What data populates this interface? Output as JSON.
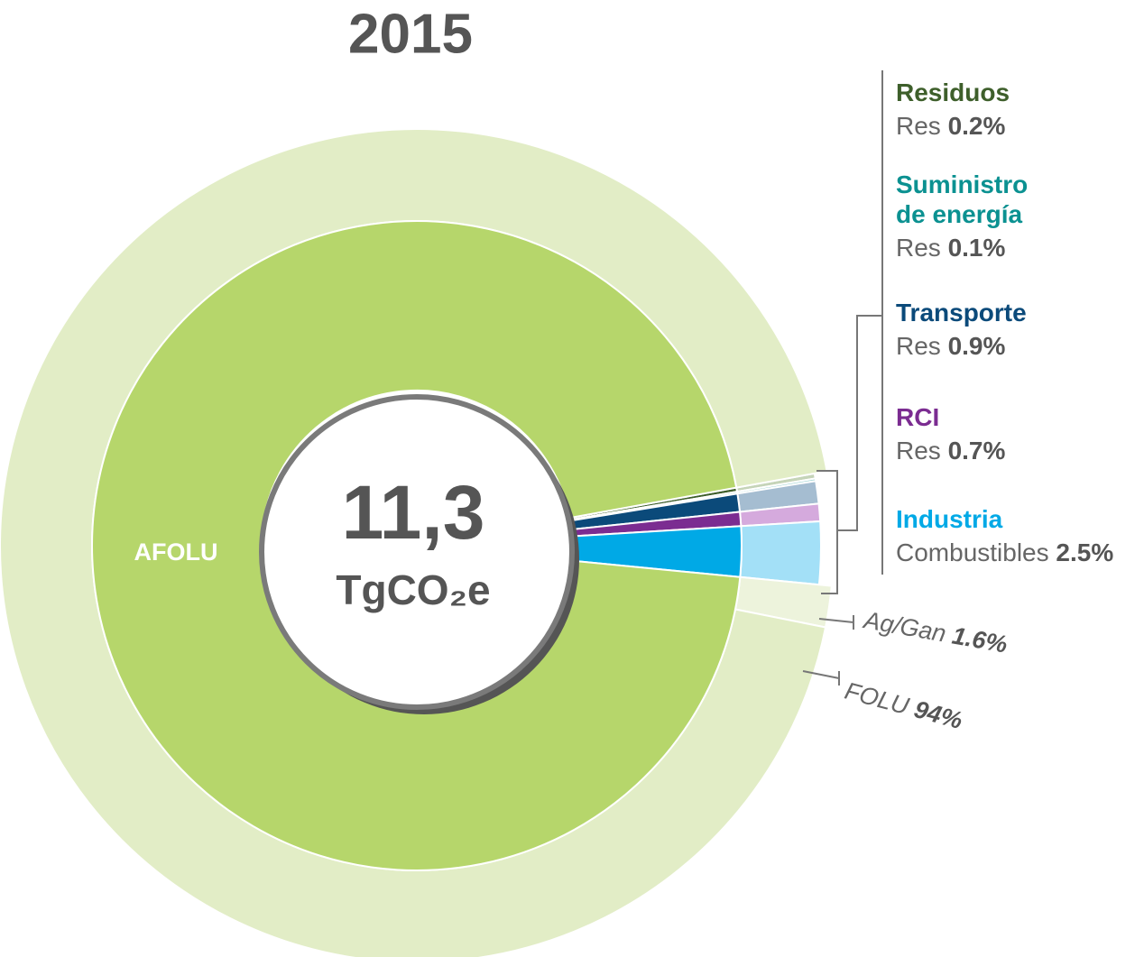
{
  "chart_data": {
    "type": "sunburst",
    "title": "2015",
    "center_label": "11,3",
    "unit": "TgCO₂e",
    "sectors": [
      {
        "name": "Residuos",
        "color": "#3e5f2b",
        "children": [
          {
            "name": "Res",
            "value": 0.2,
            "value_label": "0.2%",
            "color": "#c5d4b8"
          }
        ]
      },
      {
        "name": "Suministro de energía",
        "color": "#0b9191",
        "children": [
          {
            "name": "Res",
            "value": 0.1,
            "value_label": "0.1%",
            "color": "#9ed3d3"
          }
        ]
      },
      {
        "name": "Transporte",
        "color": "#0b4a7a",
        "children": [
          {
            "name": "Res",
            "value": 0.9,
            "value_label": "0.9%",
            "color": "#a5bdd1"
          }
        ]
      },
      {
        "name": "RCI",
        "color": "#7b2c91",
        "children": [
          {
            "name": "Res",
            "value": 0.7,
            "value_label": "0.7%",
            "color": "#d5aadd"
          }
        ]
      },
      {
        "name": "Industria",
        "color": "#00a9e6",
        "children": [
          {
            "name": "Combustibles",
            "value": 2.5,
            "value_label": "2.5%",
            "color": "#a3e0f7"
          }
        ]
      },
      {
        "name": "AFOLU",
        "color": "#b6d66b",
        "children": [
          {
            "name": "Ag/Gan",
            "value": 1.6,
            "value_label": "1.6%",
            "color": "#edf3dc"
          },
          {
            "name": "FOLU",
            "value": 94,
            "value_label": "94%",
            "color": "#e2edc6"
          }
        ]
      }
    ]
  }
}
